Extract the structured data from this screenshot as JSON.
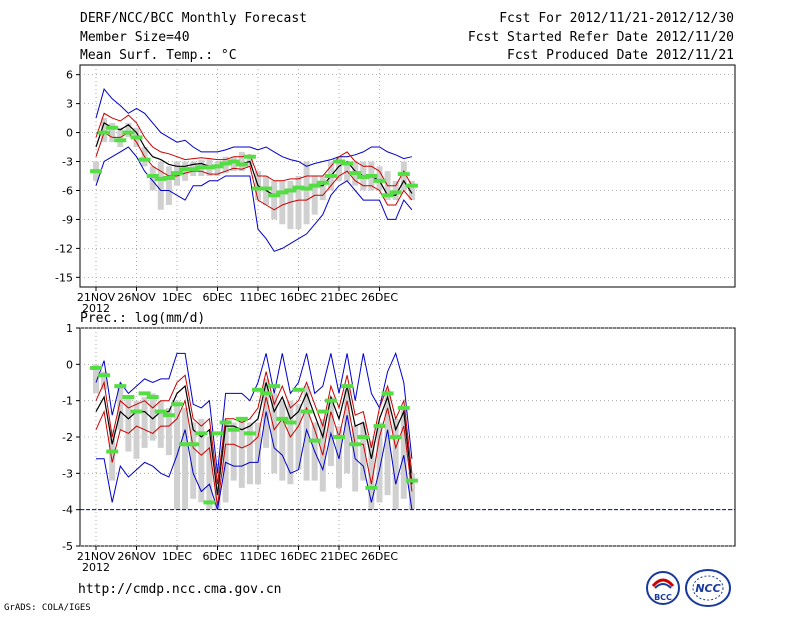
{
  "header": {
    "title": "DERF/NCC/BCC Monthly Forecast",
    "member_size": "Member Size=40",
    "variable": "Mean Surf. Temp.: °C",
    "forecast_period": "Fcst For 2012/11/21-2012/12/30",
    "started_date": "Fcst Started Refer Date 2012/11/20",
    "produced_date": "Fcst Produced Date 2012/11/21"
  },
  "footer": {
    "url": "http://cmdp.ncc.cma.gov.cn",
    "grads": "GrADS: COLA/IGES",
    "logo_bcc": "BCC",
    "logo_ncc": "NCC"
  },
  "x_ticks": [
    "21NOV",
    "26NOV",
    "1DEC",
    "6DEC",
    "11DEC",
    "16DEC",
    "21DEC",
    "26DEC"
  ],
  "x_year": "2012",
  "colors": {
    "spread": "#0000cc",
    "band": "#cc0000",
    "mean": "#000000",
    "obs": "#55dd44",
    "box": "#d0d0d0"
  },
  "chart_data": [
    {
      "type": "line",
      "title": "Mean Surf. Temp.: °C",
      "ylabel": "°C",
      "ylim": [
        -16,
        7
      ],
      "yticks": [
        6,
        3,
        0,
        -3,
        -6,
        -9,
        -12,
        -15
      ],
      "x_days": 40,
      "series": [
        {
          "name": "max",
          "values": [
            1.5,
            4.5,
            3.5,
            2.8,
            2,
            2.5,
            2,
            1,
            0,
            -0.5,
            -1,
            -0.8,
            -1.5,
            -2,
            -2,
            -2,
            -1.8,
            -1.5,
            -1.5,
            -1.5,
            -1.8,
            -1.5,
            -2,
            -2.5,
            -2.8,
            -3,
            -3.5,
            -3.2,
            -3,
            -2.8,
            -2.5,
            -2.5,
            -2.3,
            -2,
            -1.5,
            -1.5,
            -2,
            -2.3,
            -2.7,
            -2.5
          ]
        },
        {
          "name": "upper",
          "values": [
            -0.5,
            2,
            1.5,
            1.2,
            1.8,
            1,
            -0.5,
            -1.5,
            -2,
            -2.2,
            -2.5,
            -2.8,
            -2.7,
            -2.6,
            -2.7,
            -2.8,
            -2.8,
            -2.5,
            -2.5,
            -2.3,
            -4.5,
            -4.5,
            -5,
            -5,
            -4.8,
            -4.8,
            -4.5,
            -4.5,
            -4.5,
            -3.5,
            -2.5,
            -2,
            -3,
            -3.5,
            -3.5,
            -4,
            -5.5,
            -5.5,
            -4,
            -5.5
          ]
        },
        {
          "name": "mean",
          "values": [
            -1.5,
            1,
            0.5,
            0.3,
            0.8,
            0,
            -1.5,
            -2.5,
            -2.8,
            -3.3,
            -3.5,
            -3.5,
            -3.3,
            -3.2,
            -3.5,
            -3.5,
            -3.3,
            -3,
            -3.2,
            -3,
            -5.5,
            -6,
            -6.5,
            -6.2,
            -6,
            -5.8,
            -5.8,
            -5.5,
            -5.5,
            -4.5,
            -3.5,
            -3,
            -4,
            -4.5,
            -4.5,
            -5,
            -6.5,
            -6.5,
            -5,
            -6.3
          ]
        },
        {
          "name": "lower",
          "values": [
            -2.5,
            0,
            -0.5,
            -0.5,
            0,
            -1,
            -2.5,
            -3.5,
            -4,
            -4.5,
            -4.5,
            -4.2,
            -4,
            -4,
            -4.3,
            -4.3,
            -4,
            -3.7,
            -3.8,
            -3.5,
            -7,
            -7.5,
            -8,
            -7.5,
            -7.2,
            -7,
            -7,
            -6.5,
            -6.5,
            -5.5,
            -4.5,
            -4,
            -5,
            -5.5,
            -5.5,
            -6,
            -7.5,
            -7.5,
            -6,
            -7
          ]
        },
        {
          "name": "min",
          "values": [
            -5.5,
            -3,
            -2.5,
            -2,
            -1.5,
            -2.5,
            -4,
            -5,
            -6,
            -6,
            -6.5,
            -7,
            -5.5,
            -5.5,
            -5,
            -5,
            -4.5,
            -4.5,
            -4.5,
            -4.5,
            -10,
            -11,
            -12.3,
            -12,
            -11.5,
            -11,
            -10.5,
            -9.5,
            -8.5,
            -6.5,
            -5.5,
            -5,
            -6,
            -7,
            -7,
            -7,
            -9,
            -9,
            -7,
            -8
          ]
        },
        {
          "name": "observed",
          "values": [
            -4,
            0,
            0.5,
            -0.8,
            0,
            -0.5,
            -2.8,
            -4.5,
            -4.8,
            -4.7,
            -4.2,
            -3.8,
            -3.8,
            -3.6,
            -3.6,
            -3.5,
            -3.2,
            -3,
            -3.3,
            -2.5,
            -5.8,
            -5.8,
            -6.5,
            -6.2,
            -6,
            -5.7,
            -5.8,
            -5.5,
            -5.2,
            -4.5,
            -3,
            -3.2,
            -4.2,
            -4.6,
            -4.5,
            -5,
            -6.5,
            -6.2,
            -4.3,
            -5.5
          ]
        }
      ],
      "boxes": [
        [
          -5,
          -3
        ],
        [
          -1,
          1.5
        ],
        [
          -1,
          1
        ],
        [
          -1.5,
          0.5
        ],
        [
          -0.5,
          1
        ],
        [
          -1.5,
          0.5
        ],
        [
          -3.5,
          -1.5
        ],
        [
          -6,
          -3.5
        ],
        [
          -8,
          -3
        ],
        [
          -7.5,
          -3.5
        ],
        [
          -5.5,
          -3
        ],
        [
          -5,
          -3
        ],
        [
          -4.5,
          -3
        ],
        [
          -4.5,
          -2.8
        ],
        [
          -4.5,
          -2.8
        ],
        [
          -4.5,
          -3
        ],
        [
          -4.2,
          -2.5
        ],
        [
          -4,
          -2.5
        ],
        [
          -4,
          -2
        ],
        [
          -3.5,
          -2.5
        ],
        [
          -7,
          -4
        ],
        [
          -7.5,
          -4.5
        ],
        [
          -9,
          -5
        ],
        [
          -9.5,
          -5
        ],
        [
          -10,
          -5
        ],
        [
          -10,
          -4.5
        ],
        [
          -9.5,
          -3
        ],
        [
          -8.5,
          -4.5
        ],
        [
          -7,
          -4.5
        ],
        [
          -6,
          -3
        ],
        [
          -5,
          -2.5
        ],
        [
          -5,
          -3
        ],
        [
          -5.5,
          -3
        ],
        [
          -6,
          -3
        ],
        [
          -6,
          -3
        ],
        [
          -6,
          -3.5
        ],
        [
          -7,
          -4
        ],
        [
          -7,
          -5
        ],
        [
          -6,
          -3
        ],
        [
          -7,
          -5
        ]
      ]
    },
    {
      "type": "line",
      "title": "Prec.: log(mm/d)",
      "ylabel": "log(mm/d)",
      "ylim": [
        -5,
        1
      ],
      "yticks": [
        1,
        0,
        -1,
        -2,
        -3,
        -4,
        -5
      ],
      "x_days": 40,
      "series": [
        {
          "name": "max",
          "values": [
            -0.5,
            0.1,
            -1.4,
            -0.5,
            -0.8,
            -0.6,
            -0.4,
            -0.5,
            -0.4,
            -0.4,
            0.3,
            0.3,
            -1.1,
            -1.2,
            -1,
            -3,
            -0.8,
            -0.8,
            -0.8,
            -1,
            -0.5,
            0.3,
            -0.8,
            0.3,
            -0.8,
            -0.5,
            0.3,
            -0.8,
            -0.6,
            0.3,
            -0.8,
            0.3,
            -1,
            0.3,
            -0.8,
            -1.2,
            -0.2,
            0.3,
            -0.5,
            -2.6
          ]
        },
        {
          "name": "upper",
          "values": [
            -1,
            -0.5,
            -2,
            -1,
            -1.2,
            -1.1,
            -1,
            -1.2,
            -1,
            -1,
            -0.5,
            -0.3,
            -1.5,
            -1.7,
            -1.5,
            -3.3,
            -1.5,
            -1.5,
            -1.6,
            -1.5,
            -1.2,
            -0.2,
            -1.1,
            -0.6,
            -1.2,
            -1,
            -0.5,
            -1.1,
            -1.7,
            -0.6,
            -1.2,
            -0.3,
            -1.4,
            -1.3,
            -2.3,
            -1.2,
            -0.6,
            -1.5,
            -1,
            -3
          ]
        },
        {
          "name": "mean",
          "values": [
            -1.3,
            -0.9,
            -2.2,
            -1.3,
            -1.5,
            -1.3,
            -1.3,
            -1.5,
            -1.3,
            -1.3,
            -0.8,
            -0.6,
            -1.8,
            -2,
            -1.8,
            -3.6,
            -1.7,
            -1.7,
            -1.8,
            -1.7,
            -1.5,
            -0.5,
            -1.3,
            -0.9,
            -1.5,
            -1.3,
            -0.8,
            -1.4,
            -2,
            -0.9,
            -1.5,
            -0.6,
            -1.7,
            -1.6,
            -2.6,
            -1.5,
            -0.9,
            -1.8,
            -1.3,
            -3.3
          ]
        },
        {
          "name": "lower",
          "values": [
            -1.8,
            -1.3,
            -2.7,
            -1.8,
            -1.9,
            -1.7,
            -1.8,
            -1.9,
            -1.7,
            -1.7,
            -1.5,
            -1,
            -2.3,
            -2.5,
            -2.3,
            -3.9,
            -2.2,
            -2.2,
            -2.3,
            -2.2,
            -2,
            -0.9,
            -1.8,
            -1.5,
            -2,
            -1.7,
            -1.2,
            -1.8,
            -2.5,
            -1.3,
            -2,
            -1,
            -2.2,
            -2.2,
            -3.3,
            -2,
            -1.2,
            -2.3,
            -1.7,
            -3.5
          ]
        },
        {
          "name": "min",
          "values": [
            -2.6,
            -2.6,
            -3.8,
            -2.8,
            -3.1,
            -2.9,
            -2.7,
            -2.8,
            -3,
            -3.1,
            -2.5,
            -1.8,
            -3,
            -3.5,
            -3.3,
            -4,
            -2.7,
            -2.8,
            -2.8,
            -2.7,
            -2.7,
            -1.3,
            -2.3,
            -2.5,
            -3,
            -2.9,
            -1.8,
            -2.4,
            -2.9,
            -1.9,
            -2.6,
            -1.4,
            -2.6,
            -2.8,
            -3.8,
            -2.9,
            -1.8,
            -3.3,
            -2.5,
            -4
          ]
        },
        {
          "name": "observed",
          "values": [
            -0.1,
            -0.3,
            -2.4,
            -0.6,
            -0.9,
            -1.3,
            -0.8,
            -0.9,
            -1.3,
            -1.4,
            -1.1,
            -2.2,
            -2.2,
            -1.9,
            -3.8,
            -1.9,
            -1.6,
            -1.8,
            -1.5,
            -1.9,
            -0.7,
            -0.8,
            -0.6,
            -1.5,
            -1.6,
            -0.7,
            -1.3,
            -2.1,
            -1.3,
            -1,
            -2,
            -0.6,
            -2.2,
            -2,
            -3.4,
            -1.7,
            -0.8,
            -2,
            -1.2,
            -3.2
          ]
        }
      ],
      "boxes": [
        [
          -0.8,
          0
        ],
        [
          -0.7,
          -0.2
        ],
        [
          -3.2,
          -1.8
        ],
        [
          -1.8,
          -0.6
        ],
        [
          -2.4,
          -0.9
        ],
        [
          -2.6,
          -1
        ],
        [
          -2.3,
          -0.9
        ],
        [
          -2.1,
          -0.8
        ],
        [
          -2.3,
          -1
        ],
        [
          -2.5,
          -1.2
        ],
        [
          -4,
          -1
        ],
        [
          -4,
          -1.2
        ],
        [
          -3.7,
          -1.6
        ],
        [
          -3.8,
          -1.5
        ],
        [
          -4,
          -2
        ],
        [
          -4,
          -3
        ],
        [
          -3.8,
          -1.5
        ],
        [
          -3.2,
          -1.6
        ],
        [
          -3.4,
          -1.5
        ],
        [
          -3.3,
          -1.6
        ],
        [
          -3.3,
          -1.6
        ],
        [
          -2.3,
          -0.4
        ],
        [
          -3,
          -0.8
        ],
        [
          -3.2,
          -1
        ],
        [
          -3.3,
          -1
        ],
        [
          -2.9,
          -1.1
        ],
        [
          -3.2,
          -0.6
        ],
        [
          -3.2,
          -1.6
        ],
        [
          -3.5,
          -1.5
        ],
        [
          -2.8,
          -0.9
        ],
        [
          -3.4,
          -1.7
        ],
        [
          -3,
          -0.7
        ],
        [
          -3.5,
          -1.7
        ],
        [
          -3.2,
          -1.6
        ],
        [
          -4,
          -2.1
        ],
        [
          -3.8,
          -1.6
        ],
        [
          -3.6,
          -0.7
        ],
        [
          -4,
          -1.5
        ],
        [
          -3.7,
          -1.2
        ],
        [
          -4,
          -3
        ]
      ],
      "reference_line": -4
    }
  ]
}
